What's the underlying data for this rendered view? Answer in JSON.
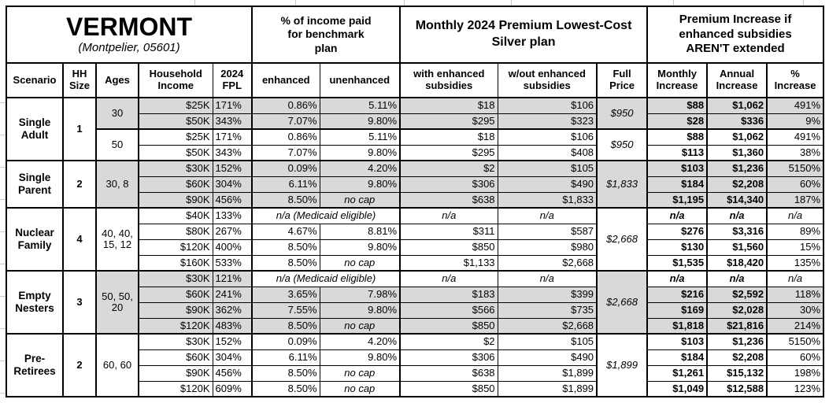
{
  "title": {
    "state": "VERMONT",
    "location": "(Montpelier, 05601)"
  },
  "colors": {
    "accent_orange": "#FBBE3C",
    "row_shade": "#D9D9D9",
    "border": "#000000"
  },
  "header": {
    "pct_income": "% of income paid for benchmark plan",
    "monthly_premium": "Monthly 2024 Premium Lowest-Cost Silver plan",
    "premium_increase": "Premium Increase if enhanced subsidies AREN'T extended"
  },
  "columns": [
    "Scenario",
    "HH Size",
    "Ages",
    "Household Income",
    "2024 FPL",
    "enhanced",
    "unenhanced",
    "with enhanced subsidies",
    "w/out enhanced subsidies",
    "Full Price",
    "Monthly Increase",
    "Annual Increase",
    "% Increase"
  ],
  "groups": [
    {
      "scenario": "Single Adult",
      "hh_size": "1",
      "blocks": [
        {
          "ages": "30",
          "shaded": true,
          "full_price": "$950",
          "rows": [
            {
              "income": "$25K",
              "fpl": "171%",
              "enhanced": "0.86%",
              "unenhanced": "5.11%",
              "with_subsidies": "$18",
              "without_subsidies": "$106",
              "monthly_increase": "$88",
              "annual_increase": "$1,062",
              "pct_increase": "491%"
            },
            {
              "income": "$50K",
              "fpl": "343%",
              "enhanced": "7.07%",
              "unenhanced": "9.80%",
              "with_subsidies": "$295",
              "without_subsidies": "$323",
              "monthly_increase": "$28",
              "annual_increase": "$336",
              "pct_increase": "9%"
            }
          ]
        },
        {
          "ages": "50",
          "shaded": false,
          "full_price": "$950",
          "rows": [
            {
              "income": "$25K",
              "fpl": "171%",
              "enhanced": "0.86%",
              "unenhanced": "5.11%",
              "with_subsidies": "$18",
              "without_subsidies": "$106",
              "monthly_increase": "$88",
              "annual_increase": "$1,062",
              "pct_increase": "491%"
            },
            {
              "income": "$50K",
              "fpl": "343%",
              "enhanced": "7.07%",
              "unenhanced": "9.80%",
              "with_subsidies": "$295",
              "without_subsidies": "$408",
              "monthly_increase": "$113",
              "annual_increase": "$1,360",
              "pct_increase": "38%"
            }
          ]
        }
      ]
    },
    {
      "scenario": "Single Parent",
      "hh_size": "2",
      "blocks": [
        {
          "ages": "30, 8",
          "shaded": true,
          "full_price": "$1,833",
          "rows": [
            {
              "income": "$30K",
              "fpl": "152%",
              "enhanced": "0.09%",
              "unenhanced": "4.20%",
              "with_subsidies": "$2",
              "without_subsidies": "$105",
              "monthly_increase": "$103",
              "annual_increase": "$1,236",
              "pct_increase": "5150%"
            },
            {
              "income": "$60K",
              "fpl": "304%",
              "enhanced": "6.11%",
              "unenhanced": "9.80%",
              "with_subsidies": "$306",
              "without_subsidies": "$490",
              "monthly_increase": "$184",
              "annual_increase": "$2,208",
              "pct_increase": "60%"
            },
            {
              "income": "$90K",
              "fpl": "456%",
              "enhanced": "8.50%",
              "unenhanced": "no cap",
              "with_subsidies": "$638",
              "without_subsidies": "$1,833",
              "monthly_increase": "$1,195",
              "annual_increase": "$14,340",
              "pct_increase": "187%"
            }
          ]
        }
      ]
    },
    {
      "scenario": "Nuclear Family",
      "hh_size": "4",
      "blocks": [
        {
          "ages": "40, 40, 15, 12",
          "shaded": false,
          "full_price": "$2,668",
          "rows": [
            {
              "income": "$40K",
              "fpl": "133%",
              "medicaid": true,
              "medicaid_note": "n/a (Medicaid eligible)",
              "with_subsidies": "n/a",
              "without_subsidies": "n/a",
              "monthly_increase": "n/a",
              "annual_increase": "n/a",
              "pct_increase": "n/a"
            },
            {
              "income": "$80K",
              "fpl": "267%",
              "enhanced": "4.67%",
              "unenhanced": "8.81%",
              "with_subsidies": "$311",
              "without_subsidies": "$587",
              "monthly_increase": "$276",
              "annual_increase": "$3,316",
              "pct_increase": "89%"
            },
            {
              "income": "$120K",
              "fpl": "400%",
              "enhanced": "8.50%",
              "unenhanced": "9.80%",
              "with_subsidies": "$850",
              "without_subsidies": "$980",
              "monthly_increase": "$130",
              "annual_increase": "$1,560",
              "pct_increase": "15%"
            },
            {
              "income": "$160K",
              "fpl": "533%",
              "enhanced": "8.50%",
              "unenhanced": "no cap",
              "with_subsidies": "$1,133",
              "without_subsidies": "$2,668",
              "monthly_increase": "$1,535",
              "annual_increase": "$18,420",
              "pct_increase": "135%"
            }
          ]
        }
      ]
    },
    {
      "scenario": "Empty Nesters",
      "hh_size": "3",
      "blocks": [
        {
          "ages": "50, 50, 20",
          "shaded": true,
          "full_price": "$2,668",
          "rows": [
            {
              "income": "$30K",
              "fpl": "121%",
              "medicaid": true,
              "medicaid_note": "n/a (Medicaid eligible)",
              "with_subsidies": "n/a",
              "without_subsidies": "n/a",
              "monthly_increase": "n/a",
              "annual_increase": "n/a",
              "pct_increase": "n/a"
            },
            {
              "income": "$60K",
              "fpl": "241%",
              "enhanced": "3.65%",
              "unenhanced": "7.98%",
              "with_subsidies": "$183",
              "without_subsidies": "$399",
              "monthly_increase": "$216",
              "annual_increase": "$2,592",
              "pct_increase": "118%"
            },
            {
              "income": "$90K",
              "fpl": "362%",
              "enhanced": "7.55%",
              "unenhanced": "9.80%",
              "with_subsidies": "$566",
              "without_subsidies": "$735",
              "monthly_increase": "$169",
              "annual_increase": "$2,028",
              "pct_increase": "30%"
            },
            {
              "income": "$120K",
              "fpl": "483%",
              "enhanced": "8.50%",
              "unenhanced": "no cap",
              "with_subsidies": "$850",
              "without_subsidies": "$2,668",
              "monthly_increase": "$1,818",
              "annual_increase": "$21,816",
              "pct_increase": "214%"
            }
          ]
        }
      ]
    },
    {
      "scenario": "Pre-Retirees",
      "hh_size": "2",
      "blocks": [
        {
          "ages": "60, 60",
          "shaded": false,
          "full_price": "$1,899",
          "rows": [
            {
              "income": "$30K",
              "fpl": "152%",
              "enhanced": "0.09%",
              "unenhanced": "4.20%",
              "with_subsidies": "$2",
              "without_subsidies": "$105",
              "monthly_increase": "$103",
              "annual_increase": "$1,236",
              "pct_increase": "5150%"
            },
            {
              "income": "$60K",
              "fpl": "304%",
              "enhanced": "6.11%",
              "unenhanced": "9.80%",
              "with_subsidies": "$306",
              "without_subsidies": "$490",
              "monthly_increase": "$184",
              "annual_increase": "$2,208",
              "pct_increase": "60%"
            },
            {
              "income": "$90K",
              "fpl": "456%",
              "enhanced": "8.50%",
              "unenhanced": "no cap",
              "with_subsidies": "$638",
              "without_subsidies": "$1,899",
              "monthly_increase": "$1,261",
              "annual_increase": "$15,132",
              "pct_increase": "198%"
            },
            {
              "income": "$120K",
              "fpl": "609%",
              "enhanced": "8.50%",
              "unenhanced": "no cap",
              "with_subsidies": "$850",
              "without_subsidies": "$1,899",
              "monthly_increase": "$1,049",
              "annual_increase": "$12,588",
              "pct_increase": "123%"
            }
          ]
        }
      ]
    }
  ]
}
